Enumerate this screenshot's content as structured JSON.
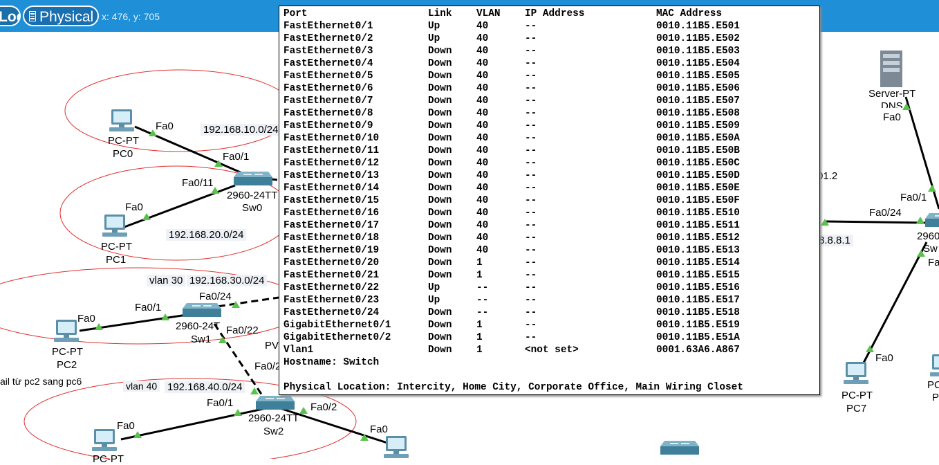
{
  "toolbar": {
    "logical_label": "Logical",
    "physical_label": "Physical",
    "coords": "x: 476, y: 705",
    "accent": "#1f90d8"
  },
  "canvas": {
    "devices": [
      {
        "name": "PC0",
        "type": "PC-PT",
        "icon": "pc-icon"
      },
      {
        "name": "PC1",
        "type": "PC-PT",
        "icon": "pc-icon"
      },
      {
        "name": "PC2",
        "type": "PC-PT",
        "icon": "pc-icon"
      },
      {
        "name": "PC7",
        "type": "PC-PT",
        "icon": "pc-icon"
      },
      {
        "name": "Sw0",
        "type": "2960-24TT",
        "icon": "switch-icon"
      },
      {
        "name": "Sw1",
        "type": "2960-24T",
        "icon": "switch-icon"
      },
      {
        "name": "Sw2",
        "type": "2960-24TT",
        "icon": "switch-icon"
      },
      {
        "name": "DNS",
        "type": "Server-PT",
        "icon": "server-icon"
      }
    ],
    "labels": {
      "pc0_type": "PC-PT",
      "pc0_name": "PC0",
      "pc0_fa0": "Fa0",
      "net10": "192.168.10.0/24",
      "sw0_fa01": "Fa0/1",
      "sw0_fa011": "Fa0/11",
      "sw0_type": "2960-24TT",
      "sw0_name": "Sw0",
      "pc1_fa0": "Fa0",
      "net20": "192.168.20.0/24",
      "pc1_type": "PC-PT",
      "pc1_name": "PC1",
      "vlan30": "vlan 30",
      "net30": "192.168.30.0/24",
      "sw1_fa024": "Fa0/24",
      "sw1_fa01": "Fa0/1",
      "pc2_fa0": "Fa0",
      "sw1_type": "2960-24T",
      "sw1_fa022": "Fa0/22",
      "sw1_name": "Sw1",
      "pc2_type": "PC-PT",
      "pc2_name": "PC2",
      "pv": "PV",
      "fa02x": "Fa0/2",
      "note": "ail từ pc2 sang pc6",
      "vlan40": "vlan 40",
      "net40": "192.168.40.0/24",
      "sw2_fa01": "Fa0/1",
      "sw2_type": "2960-24TT",
      "sw2_fa02": "Fa0/2",
      "sw2_name": "Sw2",
      "pc_bl_fa0": "Fa0",
      "pc_bl_type": "PC-PT",
      "pc_bm_fa0": "Fa0",
      "server_type": "Server-PT",
      "server_name": "DNS",
      "server_fa0": "Fa0",
      "ip_01_2": "01.2",
      "sw_r_fa01": "Fa0/1",
      "sw_r_fa024": "Fa0/24",
      "sw_r_type": "2960",
      "sw_r_name": "Sw",
      "sw_r_fa": "Fa",
      "ip_8881": "8.8.8.1",
      "paren": ")",
      "pc7_fa0": "Fa0",
      "pc7_type": "PC-PT",
      "pc7_name": "PC7",
      "pc_r_type": "PC",
      "pc_r_name": "P"
    }
  },
  "popup": {
    "headers": {
      "port": "Port",
      "link": "Link",
      "vlan": "VLAN",
      "ip": "IP Address",
      "mac": "MAC Address"
    },
    "rows": [
      {
        "port": "FastEthernet0/1",
        "link": "Up",
        "vlan": "40",
        "ip": "--",
        "mac": "0010.11B5.E501"
      },
      {
        "port": "FastEthernet0/2",
        "link": "Up",
        "vlan": "40",
        "ip": "--",
        "mac": "0010.11B5.E502"
      },
      {
        "port": "FastEthernet0/3",
        "link": "Down",
        "vlan": "40",
        "ip": "--",
        "mac": "0010.11B5.E503"
      },
      {
        "port": "FastEthernet0/4",
        "link": "Down",
        "vlan": "40",
        "ip": "--",
        "mac": "0010.11B5.E504"
      },
      {
        "port": "FastEthernet0/5",
        "link": "Down",
        "vlan": "40",
        "ip": "--",
        "mac": "0010.11B5.E505"
      },
      {
        "port": "FastEthernet0/6",
        "link": "Down",
        "vlan": "40",
        "ip": "--",
        "mac": "0010.11B5.E506"
      },
      {
        "port": "FastEthernet0/7",
        "link": "Down",
        "vlan": "40",
        "ip": "--",
        "mac": "0010.11B5.E507"
      },
      {
        "port": "FastEthernet0/8",
        "link": "Down",
        "vlan": "40",
        "ip": "--",
        "mac": "0010.11B5.E508"
      },
      {
        "port": "FastEthernet0/9",
        "link": "Down",
        "vlan": "40",
        "ip": "--",
        "mac": "0010.11B5.E509"
      },
      {
        "port": "FastEthernet0/10",
        "link": "Down",
        "vlan": "40",
        "ip": "--",
        "mac": "0010.11B5.E50A"
      },
      {
        "port": "FastEthernet0/11",
        "link": "Down",
        "vlan": "40",
        "ip": "--",
        "mac": "0010.11B5.E50B"
      },
      {
        "port": "FastEthernet0/12",
        "link": "Down",
        "vlan": "40",
        "ip": "--",
        "mac": "0010.11B5.E50C"
      },
      {
        "port": "FastEthernet0/13",
        "link": "Down",
        "vlan": "40",
        "ip": "--",
        "mac": "0010.11B5.E50D"
      },
      {
        "port": "FastEthernet0/14",
        "link": "Down",
        "vlan": "40",
        "ip": "--",
        "mac": "0010.11B5.E50E"
      },
      {
        "port": "FastEthernet0/15",
        "link": "Down",
        "vlan": "40",
        "ip": "--",
        "mac": "0010.11B5.E50F"
      },
      {
        "port": "FastEthernet0/16",
        "link": "Down",
        "vlan": "40",
        "ip": "--",
        "mac": "0010.11B5.E510"
      },
      {
        "port": "FastEthernet0/17",
        "link": "Down",
        "vlan": "40",
        "ip": "--",
        "mac": "0010.11B5.E511"
      },
      {
        "port": "FastEthernet0/18",
        "link": "Down",
        "vlan": "40",
        "ip": "--",
        "mac": "0010.11B5.E512"
      },
      {
        "port": "FastEthernet0/19",
        "link": "Down",
        "vlan": "40",
        "ip": "--",
        "mac": "0010.11B5.E513"
      },
      {
        "port": "FastEthernet0/20",
        "link": "Down",
        "vlan": "1",
        "ip": "--",
        "mac": "0010.11B5.E514"
      },
      {
        "port": "FastEthernet0/21",
        "link": "Down",
        "vlan": "1",
        "ip": "--",
        "mac": "0010.11B5.E515"
      },
      {
        "port": "FastEthernet0/22",
        "link": "Up",
        "vlan": "--",
        "ip": "--",
        "mac": "0010.11B5.E516"
      },
      {
        "port": "FastEthernet0/23",
        "link": "Up",
        "vlan": "--",
        "ip": "--",
        "mac": "0010.11B5.E517"
      },
      {
        "port": "FastEthernet0/24",
        "link": "Down",
        "vlan": "--",
        "ip": "--",
        "mac": "0010.11B5.E518"
      },
      {
        "port": "GigabitEthernet0/1",
        "link": "Down",
        "vlan": "1",
        "ip": "--",
        "mac": "0010.11B5.E519"
      },
      {
        "port": "GigabitEthernet0/2",
        "link": "Down",
        "vlan": "1",
        "ip": "--",
        "mac": "0010.11B5.E51A"
      },
      {
        "port": "Vlan1",
        "link": "Down",
        "vlan": "1",
        "ip": "<not set>",
        "mac": "0001.63A6.A867"
      }
    ],
    "hostname": "Hostname: Switch",
    "location": "Physical Location: Intercity, Home City, Corporate Office, Main Wiring Closet"
  }
}
